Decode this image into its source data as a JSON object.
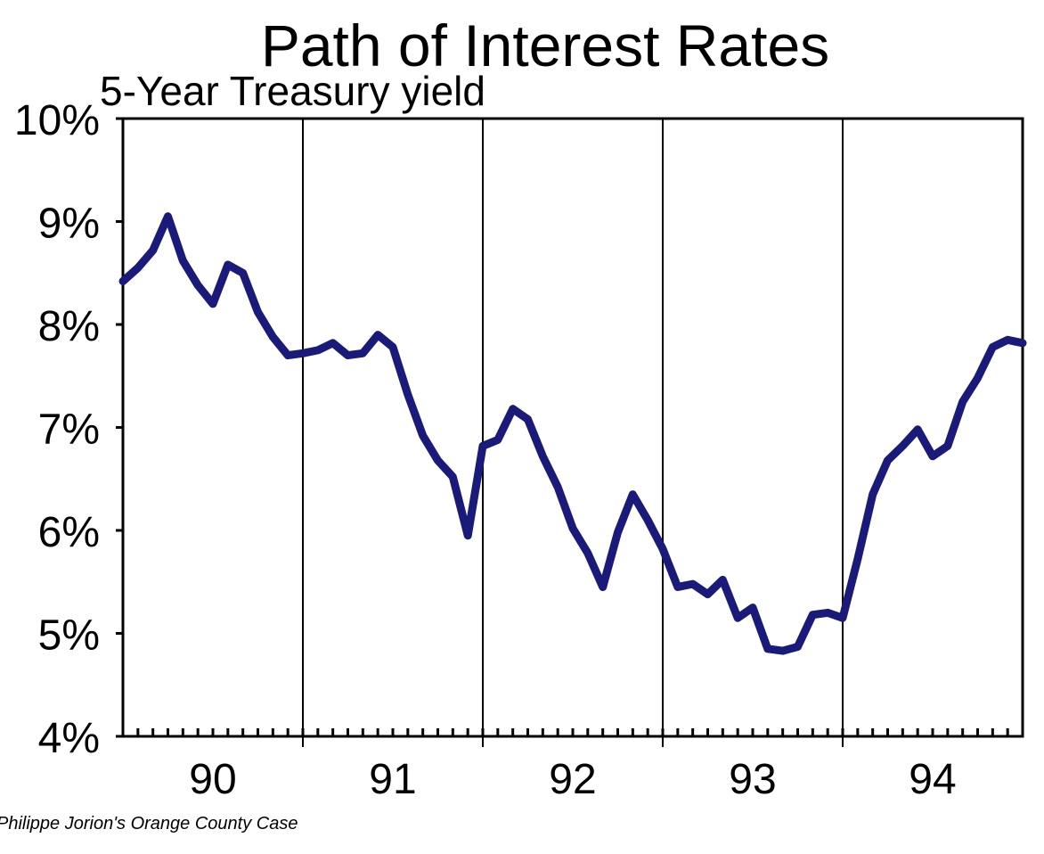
{
  "chart_data": {
    "type": "line",
    "title": "Path of Interest Rates",
    "subtitle": "5-Year Treasury yield",
    "credit": "Philippe Jorion's Orange County Case",
    "xlabel": "",
    "ylabel": "",
    "ylim": [
      4,
      10
    ],
    "xlim": [
      1990.0,
      1995.0
    ],
    "y_ticks": [
      "4%",
      "5%",
      "6%",
      "7%",
      "8%",
      "9%",
      "10%"
    ],
    "y_tick_values": [
      4,
      5,
      6,
      7,
      8,
      9,
      10
    ],
    "x_categories": [
      "90",
      "91",
      "92",
      "93",
      "94"
    ],
    "x_category_centers": [
      1990.5,
      1991.5,
      1992.5,
      1993.5,
      1994.5
    ],
    "year_dividers": [
      1991,
      1992,
      1993,
      1994
    ],
    "minor_ticks_per_year": 12,
    "grid": "vertical year dividers",
    "line_color": "#1a1a7a",
    "series": [
      {
        "x": [
          1990.0,
          1990.083,
          1990.167,
          1990.25,
          1990.333,
          1990.417,
          1990.5,
          1990.583,
          1990.667,
          1990.75,
          1990.833,
          1990.917,
          1991.0,
          1991.083,
          1991.167,
          1991.25,
          1991.333,
          1991.417,
          1991.5,
          1991.583,
          1991.667,
          1991.75,
          1991.833,
          1991.917,
          1992.0,
          1992.083,
          1992.167,
          1992.25,
          1992.333,
          1992.417,
          1992.5,
          1992.583,
          1992.667,
          1992.75,
          1992.833,
          1992.917,
          1993.0,
          1993.083,
          1993.167,
          1993.25,
          1993.333,
          1993.417,
          1993.5,
          1993.583,
          1993.667,
          1993.75,
          1993.833,
          1993.917,
          1994.0,
          1994.083,
          1994.167,
          1994.25,
          1994.333,
          1994.417,
          1994.5,
          1994.583,
          1994.667,
          1994.75,
          1994.833,
          1994.917,
          1995.0
        ],
        "values": [
          8.42,
          8.55,
          8.72,
          9.05,
          8.62,
          8.38,
          8.2,
          8.58,
          8.5,
          8.12,
          7.88,
          7.7,
          7.72,
          7.75,
          7.82,
          7.7,
          7.72,
          7.9,
          7.78,
          7.32,
          6.92,
          6.68,
          6.52,
          5.95,
          6.82,
          6.88,
          7.18,
          7.08,
          6.72,
          6.42,
          6.02,
          5.78,
          5.45,
          5.98,
          6.35,
          6.1,
          5.82,
          5.45,
          5.48,
          5.38,
          5.52,
          5.15,
          5.25,
          4.85,
          4.83,
          4.87,
          5.18,
          5.2,
          5.15,
          5.72,
          6.35,
          6.68,
          6.82,
          6.98,
          6.72,
          6.82,
          7.25,
          7.48,
          7.78,
          7.85,
          7.82
        ]
      }
    ]
  }
}
